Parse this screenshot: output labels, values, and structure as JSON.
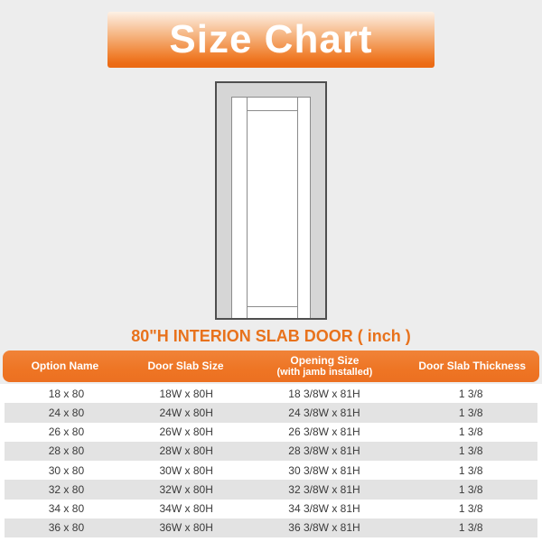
{
  "banner": {
    "title": "Size Chart",
    "gradient_top": "#fdf1e6",
    "gradient_bottom": "#eb6a14",
    "text_color": "#ffffff"
  },
  "door_diagram": {
    "description": "front view of interior slab door inside installed jamb frame",
    "frame_fill": "#d6d6d6",
    "frame_border": "#4f4f4f",
    "slab_fill": "#ffffff",
    "panel_line_color": "#8c8c8c"
  },
  "section_title": {
    "text": "80\"H INTERION SLAB DOOR ( inch )",
    "color": "#e8721c"
  },
  "table": {
    "header_background": "#ee7524",
    "header_text_color": "#ffffff",
    "stripe_color": "#e3e3e3",
    "body_text_color": "#3a3a3a",
    "columns": [
      {
        "lines": [
          "Option Name"
        ]
      },
      {
        "lines": [
          "Door Slab Size"
        ]
      },
      {
        "lines": [
          "Opening Size",
          "(with jamb installed)"
        ]
      },
      {
        "lines": [
          "Door Slab Thickness"
        ]
      }
    ],
    "rows": [
      {
        "option_name": "18 x 80",
        "door_slab_size": "18W x 80H",
        "opening_size": "18 3/8W x 81H",
        "thickness": "1 3/8"
      },
      {
        "option_name": "24 x 80",
        "door_slab_size": "24W x 80H",
        "opening_size": "24 3/8W x 81H",
        "thickness": "1 3/8"
      },
      {
        "option_name": "26 x 80",
        "door_slab_size": "26W x 80H",
        "opening_size": "26 3/8W x 81H",
        "thickness": "1 3/8"
      },
      {
        "option_name": "28 x 80",
        "door_slab_size": "28W x 80H",
        "opening_size": "28 3/8W x 81H",
        "thickness": "1 3/8"
      },
      {
        "option_name": "30 x 80",
        "door_slab_size": "30W x 80H",
        "opening_size": "30 3/8W x 81H",
        "thickness": "1 3/8"
      },
      {
        "option_name": "32 x 80",
        "door_slab_size": "32W x 80H",
        "opening_size": "32 3/8W x 81H",
        "thickness": "1 3/8"
      },
      {
        "option_name": "34 x 80",
        "door_slab_size": "34W x 80H",
        "opening_size": "34 3/8W x 81H",
        "thickness": "1 3/8"
      },
      {
        "option_name": "36 x 80",
        "door_slab_size": "36W x 80H",
        "opening_size": "36 3/8W x 81H",
        "thickness": "1 3/8"
      }
    ]
  }
}
